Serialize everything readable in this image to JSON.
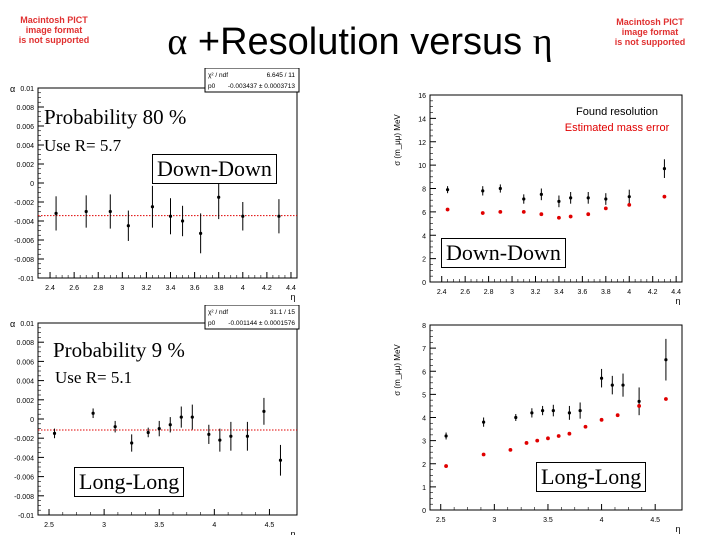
{
  "pict_left": {
    "line1": "Macintosh PICT",
    "line2": "image format",
    "line3": "is not supported"
  },
  "pict_right": {
    "line1": "Macintosh PICT",
    "line2": "image format",
    "line3": "is not supported"
  },
  "slide_title": {
    "alpha": "α",
    "text": " +Resolution versus ",
    "eta": "η"
  },
  "labels": {
    "prob80": "Probability 80 %",
    "useR57": "Use R= 5.7",
    "downdown1": "Down-Down",
    "downdown2": "Down-Down",
    "prob9": "Probability 9 %",
    "useR51": "Use R= 5.1",
    "longlong1": "Long-Long",
    "longlong2": "Long-Long"
  },
  "colors": {
    "red": "#e00000",
    "black": "#000000"
  },
  "chart_data": [
    {
      "id": "alpha-downdown",
      "type": "scatter",
      "ylabel": "α",
      "xlabel": "η",
      "xlim": [
        2.3,
        4.45
      ],
      "ylim": [
        -0.01,
        0.01
      ],
      "xticks": [
        "2.4",
        "2.6",
        "2.8",
        "3",
        "3.2",
        "3.4",
        "3.6",
        "3.8",
        "4",
        "4.2",
        "4.4"
      ],
      "xtick_values": [
        2.4,
        2.6,
        2.8,
        3,
        3.2,
        3.4,
        3.6,
        3.8,
        4,
        4.2,
        4.4
      ],
      "yticks": [
        "0.01",
        "0.008",
        "0.006",
        "0.004",
        "0.002",
        "0",
        "-0.002",
        "-0.004",
        "-0.006",
        "-0.008",
        "-0.01"
      ],
      "ytick_values": [
        0.01,
        0.008,
        0.006,
        0.004,
        0.002,
        0,
        -0.002,
        -0.004,
        -0.006,
        -0.008,
        -0.01
      ],
      "stats": [
        {
          "k": "χ² / ndf",
          "v": "6.645 / 11"
        },
        {
          "k": "p0",
          "v": "-0.003437 ± 0.0003713"
        }
      ],
      "fit_line": -0.003437,
      "points": [
        {
          "x": 2.45,
          "y": -0.0032,
          "e": 0.0018
        },
        {
          "x": 2.7,
          "y": -0.003,
          "e": 0.0017
        },
        {
          "x": 2.9,
          "y": -0.003,
          "e": 0.0018
        },
        {
          "x": 3.05,
          "y": -0.0045,
          "e": 0.0016
        },
        {
          "x": 3.25,
          "y": -0.0025,
          "e": 0.0022
        },
        {
          "x": 3.4,
          "y": -0.0035,
          "e": 0.0019
        },
        {
          "x": 3.5,
          "y": -0.004,
          "e": 0.0016
        },
        {
          "x": 3.65,
          "y": -0.0053,
          "e": 0.0021
        },
        {
          "x": 3.8,
          "y": -0.0015,
          "e": 0.0023
        },
        {
          "x": 4.0,
          "y": -0.0035,
          "e": 0.0015
        },
        {
          "x": 4.3,
          "y": -0.0035,
          "e": 0.0018
        }
      ]
    },
    {
      "id": "res-downdown",
      "type": "scatter",
      "ylabel": "σ (m_μμ) MeV",
      "xlabel": "η",
      "xlim": [
        2.3,
        4.45
      ],
      "ylim": [
        0,
        16
      ],
      "xticks": [
        "2.4",
        "2.6",
        "2.8",
        "3",
        "3.2",
        "3.4",
        "3.6",
        "3.8",
        "4",
        "4.2",
        "4.4"
      ],
      "xtick_values": [
        2.4,
        2.6,
        2.8,
        3,
        3.2,
        3.4,
        3.6,
        3.8,
        4,
        4.2,
        4.4
      ],
      "yticks": [
        "16",
        "14",
        "12",
        "10",
        "8",
        "6",
        "4",
        "2",
        "0"
      ],
      "ytick_values": [
        16,
        14,
        12,
        10,
        8,
        6,
        4,
        2,
        0
      ],
      "legend": [
        "Found resolution",
        "Estimated mass error"
      ],
      "series": [
        {
          "name": "Found resolution",
          "color": "black",
          "points": [
            {
              "x": 2.45,
              "y": 7.9,
              "e": 0.3
            },
            {
              "x": 2.75,
              "y": 7.8,
              "e": 0.4
            },
            {
              "x": 2.9,
              "y": 8.0,
              "e": 0.35
            },
            {
              "x": 3.1,
              "y": 7.1,
              "e": 0.4
            },
            {
              "x": 3.25,
              "y": 7.5,
              "e": 0.5
            },
            {
              "x": 3.4,
              "y": 6.9,
              "e": 0.5
            },
            {
              "x": 3.5,
              "y": 7.2,
              "e": 0.5
            },
            {
              "x": 3.65,
              "y": 7.2,
              "e": 0.5
            },
            {
              "x": 3.8,
              "y": 7.1,
              "e": 0.5
            },
            {
              "x": 4.0,
              "y": 7.3,
              "e": 0.6
            },
            {
              "x": 4.3,
              "y": 9.7,
              "e": 0.8
            }
          ]
        },
        {
          "name": "Estimated mass error",
          "color": "red",
          "points": [
            {
              "x": 2.45,
              "y": 6.2
            },
            {
              "x": 2.75,
              "y": 5.9
            },
            {
              "x": 2.9,
              "y": 6.0
            },
            {
              "x": 3.1,
              "y": 6.0
            },
            {
              "x": 3.25,
              "y": 5.8
            },
            {
              "x": 3.4,
              "y": 5.5
            },
            {
              "x": 3.5,
              "y": 5.6
            },
            {
              "x": 3.65,
              "y": 5.8
            },
            {
              "x": 3.8,
              "y": 6.3
            },
            {
              "x": 4.0,
              "y": 6.6
            },
            {
              "x": 4.3,
              "y": 7.3
            }
          ]
        }
      ]
    },
    {
      "id": "alpha-longlong",
      "type": "scatter",
      "ylabel": "α",
      "xlabel": "η",
      "xlim": [
        2.4,
        4.75
      ],
      "ylim": [
        -0.01,
        0.01
      ],
      "xticks": [
        "2.5",
        "3",
        "3.5",
        "4",
        "4.5"
      ],
      "xtick_values": [
        2.5,
        3,
        3.5,
        4,
        4.5
      ],
      "yticks": [
        "0.01",
        "0.008",
        "0.006",
        "0.004",
        "0.002",
        "0",
        "-0.002",
        "-0.004",
        "-0.006",
        "-0.008",
        "-0.01"
      ],
      "ytick_values": [
        0.01,
        0.008,
        0.006,
        0.004,
        0.002,
        0,
        -0.002,
        -0.004,
        -0.006,
        -0.008,
        -0.01
      ],
      "stats": [
        {
          "k": "χ² / ndf",
          "v": "31.1 / 15"
        },
        {
          "k": "p0",
          "v": "-0.001144 ± 0.0001576"
        }
      ],
      "fit_line": -0.001144,
      "points": [
        {
          "x": 2.55,
          "y": -0.0015,
          "e": 0.0005
        },
        {
          "x": 2.9,
          "y": 0.0006,
          "e": 0.0005
        },
        {
          "x": 3.1,
          "y": -0.0008,
          "e": 0.0006
        },
        {
          "x": 3.25,
          "y": -0.0025,
          "e": 0.0009
        },
        {
          "x": 3.4,
          "y": -0.0014,
          "e": 0.0005
        },
        {
          "x": 3.5,
          "y": -0.001,
          "e": 0.0008
        },
        {
          "x": 3.6,
          "y": -0.0006,
          "e": 0.0008
        },
        {
          "x": 3.7,
          "y": 0.0002,
          "e": 0.0011
        },
        {
          "x": 3.8,
          "y": 0.0002,
          "e": 0.0013
        },
        {
          "x": 3.95,
          "y": -0.0016,
          "e": 0.001
        },
        {
          "x": 4.05,
          "y": -0.0022,
          "e": 0.0012
        },
        {
          "x": 4.15,
          "y": -0.0018,
          "e": 0.0015
        },
        {
          "x": 4.3,
          "y": -0.0018,
          "e": 0.0015
        },
        {
          "x": 4.45,
          "y": 0.0008,
          "e": 0.0014
        },
        {
          "x": 4.6,
          "y": -0.0043,
          "e": 0.0016
        }
      ]
    },
    {
      "id": "res-longlong",
      "type": "scatter",
      "ylabel": "σ (m_μμ) MeV",
      "xlabel": "η",
      "xlim": [
        2.4,
        4.75
      ],
      "ylim": [
        0,
        8
      ],
      "xticks": [
        "2.5",
        "3",
        "3.5",
        "4",
        "4.5"
      ],
      "xtick_values": [
        2.5,
        3,
        3.5,
        4,
        4.5
      ],
      "yticks": [
        "8",
        "7",
        "6",
        "5",
        "4",
        "3",
        "2",
        "1",
        "0"
      ],
      "ytick_values": [
        8,
        7,
        6,
        5,
        4,
        3,
        2,
        1,
        0
      ],
      "series": [
        {
          "name": "Found resolution",
          "color": "black",
          "points": [
            {
              "x": 2.55,
              "y": 3.2,
              "e": 0.15
            },
            {
              "x": 2.9,
              "y": 3.8,
              "e": 0.2
            },
            {
              "x": 3.2,
              "y": 4.0,
              "e": 0.15
            },
            {
              "x": 3.35,
              "y": 4.2,
              "e": 0.2
            },
            {
              "x": 3.45,
              "y": 4.3,
              "e": 0.2
            },
            {
              "x": 3.55,
              "y": 4.3,
              "e": 0.25
            },
            {
              "x": 3.7,
              "y": 4.2,
              "e": 0.3
            },
            {
              "x": 3.8,
              "y": 4.3,
              "e": 0.35
            },
            {
              "x": 4.0,
              "y": 5.7,
              "e": 0.4
            },
            {
              "x": 4.1,
              "y": 5.4,
              "e": 0.4
            },
            {
              "x": 4.2,
              "y": 5.4,
              "e": 0.5
            },
            {
              "x": 4.35,
              "y": 4.7,
              "e": 0.6
            },
            {
              "x": 4.6,
              "y": 6.5,
              "e": 0.9
            }
          ]
        },
        {
          "name": "Estimated mass error",
          "color": "red",
          "points": [
            {
              "x": 2.55,
              "y": 1.9
            },
            {
              "x": 2.9,
              "y": 2.4
            },
            {
              "x": 3.15,
              "y": 2.6
            },
            {
              "x": 3.3,
              "y": 2.9
            },
            {
              "x": 3.4,
              "y": 3.0
            },
            {
              "x": 3.5,
              "y": 3.1
            },
            {
              "x": 3.6,
              "y": 3.2
            },
            {
              "x": 3.7,
              "y": 3.3
            },
            {
              "x": 3.85,
              "y": 3.6
            },
            {
              "x": 4.0,
              "y": 3.9
            },
            {
              "x": 4.15,
              "y": 4.1
            },
            {
              "x": 4.35,
              "y": 4.5
            },
            {
              "x": 4.6,
              "y": 4.8
            }
          ]
        }
      ]
    }
  ]
}
